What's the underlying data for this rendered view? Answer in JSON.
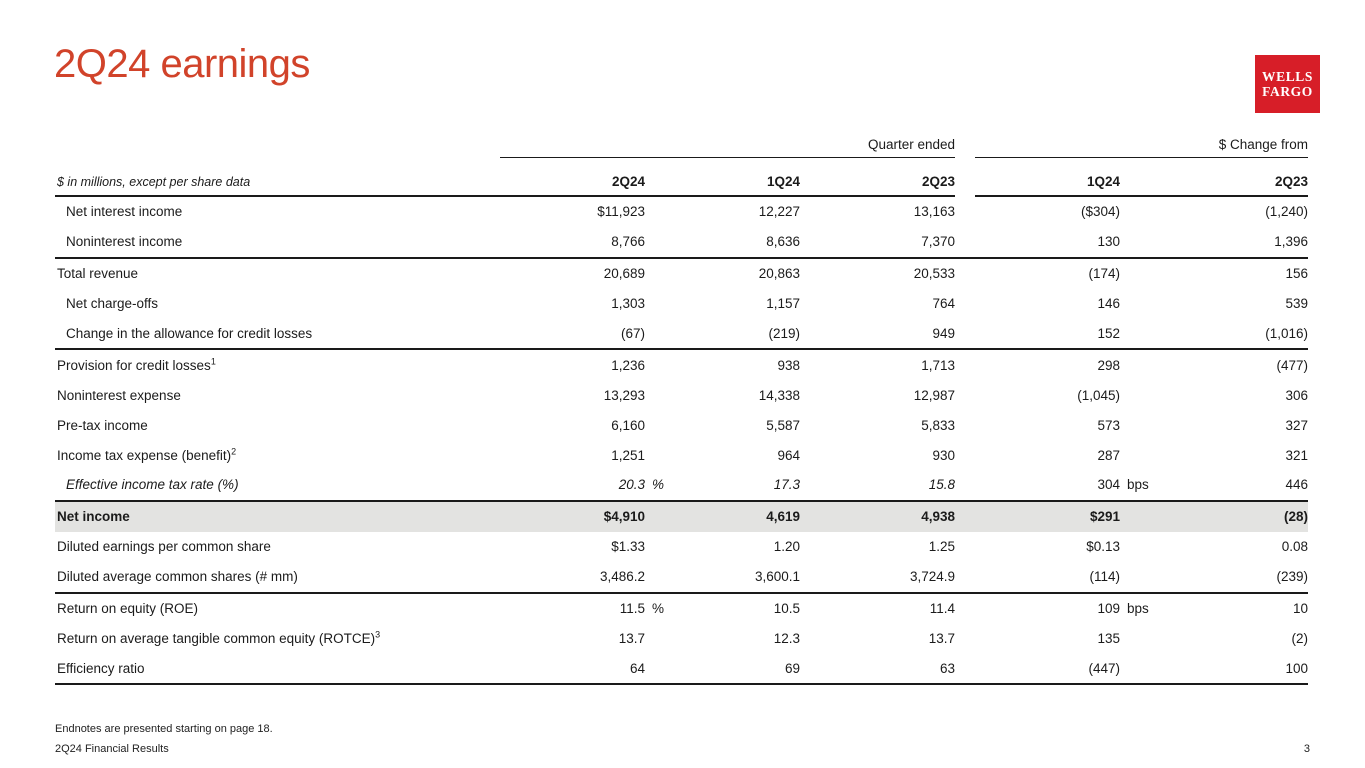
{
  "title": "2Q24 earnings",
  "logo": {
    "line1": "WELLS",
    "line2": "FARGO",
    "brand_color": "#d71e28"
  },
  "colors": {
    "title_accent": "#d1432a",
    "rule": "#1a1a1a",
    "shaded_row_bg": "#e3e3e1"
  },
  "table": {
    "note": "$ in millions, except per share data",
    "group_headers": [
      {
        "label": "Quarter ended"
      },
      {
        "label": "$ Change from"
      }
    ],
    "column_headers": [
      "2Q24",
      "1Q24",
      "2Q23",
      "1Q24",
      "2Q23"
    ],
    "rows": [
      {
        "label": "Net interest income",
        "indent": true,
        "values": [
          "$11,923",
          "12,227",
          "13,163",
          "($304)",
          "(1,240)"
        ]
      },
      {
        "label": "Noninterest income",
        "indent": true,
        "values": [
          "8,766",
          "8,636",
          "7,370",
          "130",
          "1,396"
        ]
      },
      {
        "label": "Total revenue",
        "rule_above": true,
        "values": [
          "20,689",
          "20,863",
          "20,533",
          "(174)",
          "156"
        ]
      },
      {
        "label": "Net charge-offs",
        "indent": true,
        "values": [
          "1,303",
          "1,157",
          "764",
          "146",
          "539"
        ]
      },
      {
        "label": "Change in the allowance for credit losses",
        "indent": true,
        "values": [
          "(67)",
          "(219)",
          "949",
          "152",
          "(1,016)"
        ]
      },
      {
        "label": "Provision for credit losses",
        "sup": "1",
        "rule_above": true,
        "values": [
          "1,236",
          "938",
          "1,713",
          "298",
          "(477)"
        ]
      },
      {
        "label": "Noninterest expense",
        "values": [
          "13,293",
          "14,338",
          "12,987",
          "(1,045)",
          "306"
        ]
      },
      {
        "label": "Pre-tax income",
        "values": [
          "6,160",
          "5,587",
          "5,833",
          "573",
          "327"
        ]
      },
      {
        "label": "Income tax expense (benefit)",
        "sup": "2",
        "values": [
          "1,251",
          "964",
          "930",
          "287",
          "321"
        ]
      },
      {
        "label": "Effective income tax rate (%)",
        "indent": true,
        "italic": true,
        "italic_values": [
          0,
          1,
          2
        ],
        "values": [
          "20.3",
          "17.3",
          "15.8",
          "304",
          "446"
        ],
        "suffixes": {
          "0": "%",
          "3": "bps"
        }
      },
      {
        "label": "Net income",
        "bold": true,
        "shaded": true,
        "rule_above": true,
        "values": [
          "$4,910",
          "4,619",
          "4,938",
          "$291",
          "(28)"
        ]
      },
      {
        "label": "Diluted earnings per common share",
        "values": [
          "$1.33",
          "1.20",
          "1.25",
          "$0.13",
          "0.08"
        ]
      },
      {
        "label": "Diluted average common shares (# mm)",
        "values": [
          "3,486.2",
          "3,600.1",
          "3,724.9",
          "(114)",
          "(239)"
        ]
      },
      {
        "label": "Return on equity (ROE)",
        "rule_above": true,
        "values": [
          "11.5",
          "10.5",
          "11.4",
          "109",
          "10"
        ],
        "suffixes": {
          "0": "%",
          "3": "bps"
        }
      },
      {
        "label": "Return on average tangible common equity (ROTCE)",
        "sup": "3",
        "values": [
          "13.7",
          "12.3",
          "13.7",
          "135",
          "(2)"
        ]
      },
      {
        "label": "Efficiency ratio",
        "values": [
          "64",
          "69",
          "63",
          "(447)",
          "100"
        ]
      }
    ]
  },
  "footer": {
    "endnote": "Endnotes are presented starting on page 18.",
    "left": "2Q24 Financial Results",
    "page": "3"
  }
}
